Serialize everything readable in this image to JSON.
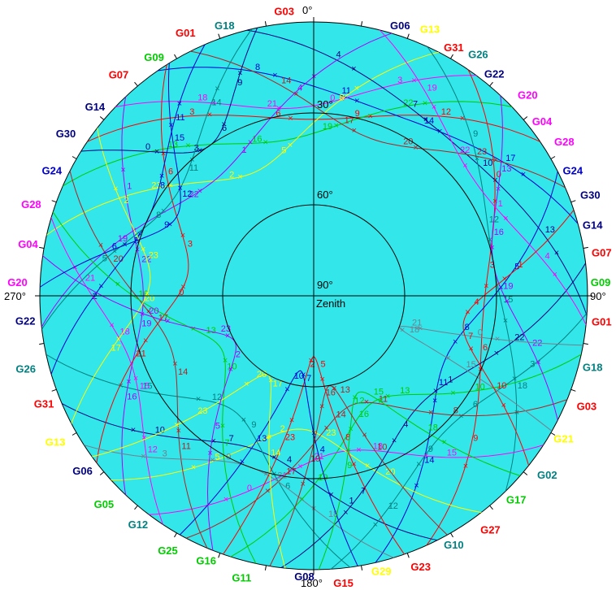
{
  "plot": {
    "azimuth_labels": {
      "north": "0°",
      "west": "270°",
      "east": "90°",
      "south": "180°"
    },
    "elevation_labels": [
      "30°",
      "60°",
      "90°"
    ],
    "zenith_label": "Zenith"
  },
  "colors": {
    "sky": "#33e6ea",
    "red": "#ff0000",
    "darkred": "#b22222",
    "blue": "#0000cc",
    "navy": "#000080",
    "teal": "#008080",
    "magenta": "#ff00ff",
    "yellow": "#ffff00",
    "green": "#00cc00",
    "purple": "#aa00ff",
    "gray": "#708090"
  },
  "satellite_labels": [
    {
      "id": "G06",
      "color": "navy"
    },
    {
      "id": "G13",
      "color": "yellow"
    },
    {
      "id": "G31",
      "color": "red"
    },
    {
      "id": "G26",
      "color": "teal"
    },
    {
      "id": "G22",
      "color": "navy"
    },
    {
      "id": "G20",
      "color": "magenta"
    },
    {
      "id": "G04",
      "color": "magenta"
    },
    {
      "id": "G28",
      "color": "magenta"
    },
    {
      "id": "G24",
      "color": "blue"
    },
    {
      "id": "G30",
      "color": "navy"
    },
    {
      "id": "G14",
      "color": "navy"
    },
    {
      "id": "G07",
      "color": "red"
    },
    {
      "id": "G09",
      "color": "green"
    },
    {
      "id": "G01",
      "color": "red"
    },
    {
      "id": "G18",
      "color": "teal"
    },
    {
      "id": "G03",
      "color": "red"
    },
    {
      "id": "G21",
      "color": "yellow"
    },
    {
      "id": "G02",
      "color": "teal"
    },
    {
      "id": "G17",
      "color": "green"
    },
    {
      "id": "G27",
      "color": "red"
    },
    {
      "id": "G10",
      "color": "teal"
    },
    {
      "id": "G23",
      "color": "red"
    },
    {
      "id": "G29",
      "color": "yellow"
    },
    {
      "id": "G15",
      "color": "red"
    },
    {
      "id": "G08",
      "color": "navy"
    },
    {
      "id": "G11",
      "color": "green"
    },
    {
      "id": "G16",
      "color": "green"
    },
    {
      "id": "G25",
      "color": "green"
    },
    {
      "id": "G12",
      "color": "teal"
    },
    {
      "id": "G05",
      "color": "green"
    }
  ],
  "hour_ticks": [
    "0",
    "1",
    "2",
    "3",
    "4",
    "5",
    "6",
    "7",
    "8",
    "9",
    "10",
    "11",
    "12",
    "13",
    "14",
    "15",
    "16",
    "17",
    "18",
    "19",
    "20",
    "21",
    "22",
    "23"
  ]
}
